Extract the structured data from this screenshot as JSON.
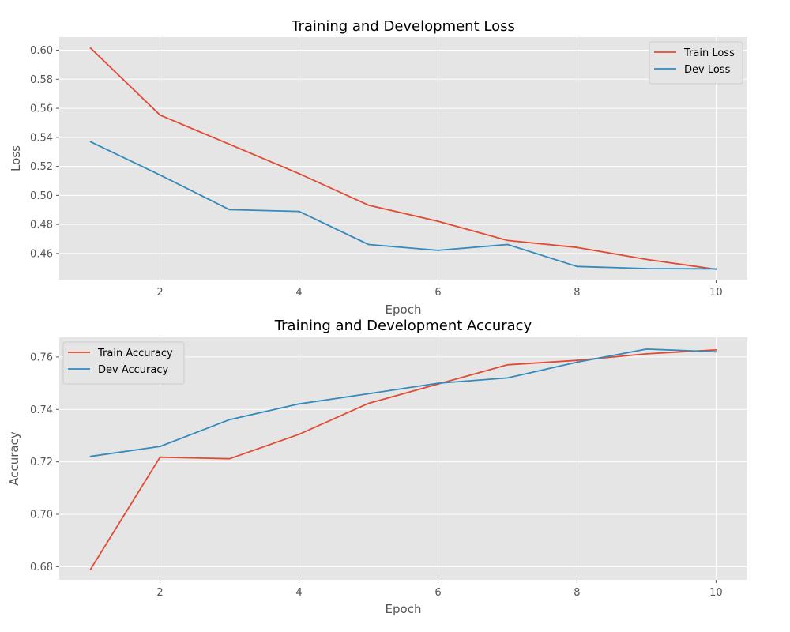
{
  "chart_data": [
    {
      "type": "line",
      "title": "Training and Development Loss",
      "xlabel": "Epoch",
      "ylabel": "Loss",
      "x": [
        1,
        2,
        3,
        4,
        5,
        6,
        7,
        8,
        9,
        10
      ],
      "xlim": [
        0.55,
        10.45
      ],
      "ylim": [
        0.442,
        0.609
      ],
      "xticks": [
        2,
        4,
        6,
        8,
        10
      ],
      "xtick_labels": [
        "2",
        "4",
        "6",
        "8",
        "10"
      ],
      "yticks": [
        0.46,
        0.48,
        0.5,
        0.52,
        0.54,
        0.56,
        0.58,
        0.6
      ],
      "ytick_labels": [
        "0.46",
        "0.48",
        "0.50",
        "0.52",
        "0.54",
        "0.56",
        "0.58",
        "0.60"
      ],
      "grid": true,
      "legend_position": "top-right",
      "series": [
        {
          "name": "Train Loss",
          "color": "#E24A33",
          "values": [
            0.6015,
            0.5553,
            0.5352,
            0.515,
            0.4933,
            0.4822,
            0.469,
            0.4642,
            0.4559,
            0.4491
          ]
        },
        {
          "name": "Dev Loss",
          "color": "#348ABD",
          "values": [
            0.537,
            0.514,
            0.4902,
            0.489,
            0.4662,
            0.4622,
            0.4662,
            0.4511,
            0.4496,
            0.4494
          ]
        }
      ]
    },
    {
      "type": "line",
      "title": "Training and Development Accuracy",
      "xlabel": "Epoch",
      "ylabel": "Accuracy",
      "x": [
        1,
        2,
        3,
        4,
        5,
        6,
        7,
        8,
        9,
        10
      ],
      "xlim": [
        0.55,
        10.45
      ],
      "ylim": [
        0.675,
        0.7675
      ],
      "xticks": [
        2,
        4,
        6,
        8,
        10
      ],
      "xtick_labels": [
        "2",
        "4",
        "6",
        "8",
        "10"
      ],
      "yticks": [
        0.68,
        0.7,
        0.72,
        0.74,
        0.76
      ],
      "ytick_labels": [
        "0.68",
        "0.70",
        "0.72",
        "0.74",
        "0.76"
      ],
      "grid": true,
      "legend_position": "top-left",
      "series": [
        {
          "name": "Train Accuracy",
          "color": "#E24A33",
          "values": [
            0.679,
            0.7218,
            0.7212,
            0.7305,
            0.7423,
            0.7497,
            0.757,
            0.7587,
            0.7612,
            0.7627
          ]
        },
        {
          "name": "Dev Accuracy",
          "color": "#348ABD",
          "values": [
            0.7221,
            0.7259,
            0.7361,
            0.7421,
            0.746,
            0.75,
            0.752,
            0.758,
            0.763,
            0.762
          ]
        }
      ]
    }
  ]
}
